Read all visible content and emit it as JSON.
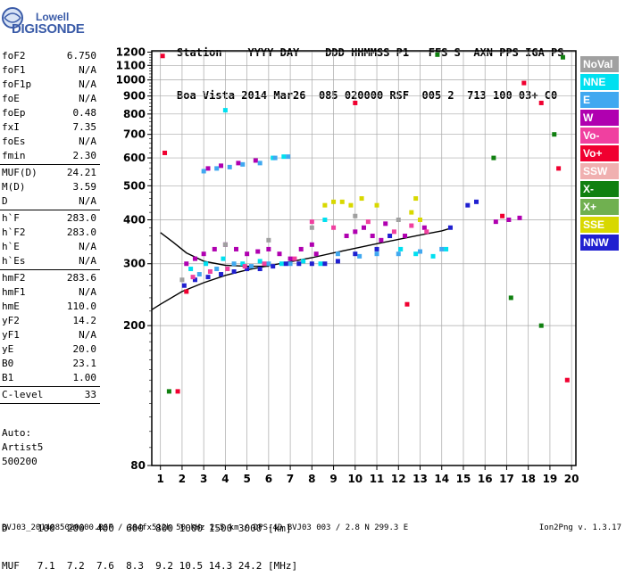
{
  "logo": {
    "line1": "Lowell",
    "line2": "DIGISONDE"
  },
  "header": {
    "line1": "Station    YYYY DAY    DDD HHMMSS P1   FFS S  AXN PPS IGA PS",
    "line2": "Boa Vista 2014 Mar26  085 020000 RSF  005 2  713 100 03+ C0"
  },
  "params": [
    {
      "label": "foF2",
      "value": "6.750"
    },
    {
      "label": "foF1",
      "value": "N/A"
    },
    {
      "label": "foF1p",
      "value": "N/A"
    },
    {
      "label": "foE",
      "value": "N/A"
    },
    {
      "label": "foEp",
      "value": "0.48"
    },
    {
      "label": "fxI",
      "value": "7.35"
    },
    {
      "label": "foEs",
      "value": "N/A"
    },
    {
      "label": "fmin",
      "value": "2.30"
    },
    {
      "sep": true
    },
    {
      "label": "MUF(D)",
      "value": "24.21"
    },
    {
      "label": "M(D)",
      "value": "3.59"
    },
    {
      "label": "D",
      "value": "N/A"
    },
    {
      "sep": true
    },
    {
      "label": "h`F",
      "value": "283.0"
    },
    {
      "label": "h`F2",
      "value": "283.0"
    },
    {
      "label": "h`E",
      "value": "N/A"
    },
    {
      "label": "h`Es",
      "value": "N/A"
    },
    {
      "sep": true
    },
    {
      "label": "hmF2",
      "value": "283.6"
    },
    {
      "label": "hmF1",
      "value": "N/A"
    },
    {
      "label": "hmE",
      "value": "110.0"
    },
    {
      "label": "yF2",
      "value": "14.2"
    },
    {
      "label": "yF1",
      "value": "N/A"
    },
    {
      "label": "yE",
      "value": "20.0"
    },
    {
      "label": "B0",
      "value": "23.1"
    },
    {
      "label": "B1",
      "value": "1.00"
    },
    {
      "sep": true
    },
    {
      "label": "C-level",
      "value": "33"
    },
    {
      "sep": true
    }
  ],
  "auto": {
    "line1": "Auto:",
    "line2": "Artist5",
    "line3": "500200"
  },
  "legend": [
    {
      "name": "NoVal",
      "color": "#a0a0a0"
    },
    {
      "name": "NNE",
      "color": "#00e0f0"
    },
    {
      "name": "E",
      "color": "#40a8f0"
    },
    {
      "name": "W",
      "color": "#b000b0"
    },
    {
      "name": "Vo-",
      "color": "#f040a0"
    },
    {
      "name": "Vo+",
      "color": "#f00030"
    },
    {
      "name": "SSW",
      "color": "#f0b0b0"
    },
    {
      "name": "X-",
      "color": "#108010"
    },
    {
      "name": "X+",
      "color": "#70b050"
    },
    {
      "name": "SSE",
      "color": "#d8d800"
    },
    {
      "name": "NNW",
      "color": "#2020d0"
    }
  ],
  "muf_table": {
    "d_line": "D     100  200  400  600  800 1000 1500 3000 [km]",
    "muf_line": "MUF   7.1  7.2  7.6  8.3  9.2 10.5 14.3 24.2 [MHz]"
  },
  "footer": {
    "left": "BVJ03_2014085020000.RSF / 384fx512h 50 kHz 2.5 km / DPS-4D BVJ03 003 / 2.8 N 299.3 E",
    "right": "Ion2Png v. 1.3.17"
  },
  "chart_data": {
    "type": "scatter",
    "xlabel": "",
    "ylabel": "",
    "xlim": [
      0.6,
      20.2
    ],
    "ylim": [
      80,
      1210
    ],
    "x_ticks": [
      1,
      2,
      3,
      4,
      5,
      6,
      7,
      8,
      9,
      10,
      11,
      12,
      13,
      14,
      15,
      16,
      17,
      18,
      19,
      20
    ],
    "y_ticks": [
      80,
      200,
      300,
      400,
      500,
      600,
      700,
      800,
      900,
      1000,
      1100,
      1200
    ],
    "y_scale": "log",
    "grid": true,
    "legend_position": "right",
    "series": [
      {
        "name": "W",
        "points": [
          [
            2.2,
            300
          ],
          [
            2.6,
            310
          ],
          [
            3.0,
            320
          ],
          [
            3.5,
            330
          ],
          [
            4.0,
            340
          ],
          [
            4.5,
            330
          ],
          [
            5.0,
            320
          ],
          [
            5.5,
            325
          ],
          [
            6.0,
            330
          ],
          [
            6.5,
            320
          ],
          [
            7.0,
            310
          ],
          [
            7.5,
            330
          ],
          [
            8.0,
            340
          ],
          [
            8.2,
            320
          ],
          [
            9.6,
            360
          ],
          [
            10.0,
            370
          ],
          [
            10.4,
            380
          ],
          [
            10.8,
            360
          ],
          [
            11.2,
            350
          ],
          [
            11.4,
            390
          ],
          [
            3.2,
            560
          ],
          [
            3.8,
            570
          ],
          [
            4.6,
            580
          ],
          [
            5.4,
            590
          ],
          [
            13.2,
            380
          ],
          [
            12.3,
            360
          ],
          [
            16.5,
            395
          ],
          [
            17.1,
            400
          ],
          [
            17.6,
            405
          ]
        ]
      },
      {
        "name": "NNE",
        "points": [
          [
            2.4,
            290
          ],
          [
            3.1,
            300
          ],
          [
            3.9,
            310
          ],
          [
            4.8,
            300
          ],
          [
            5.6,
            305
          ],
          [
            6.6,
            300
          ],
          [
            7.6,
            305
          ],
          [
            8.4,
            300
          ],
          [
            6.2,
            600
          ],
          [
            6.7,
            605
          ],
          [
            4.0,
            820
          ],
          [
            12.1,
            330
          ],
          [
            12.8,
            320
          ],
          [
            13.6,
            315
          ],
          [
            14.2,
            330
          ],
          [
            8.6,
            400
          ]
        ]
      },
      {
        "name": "E",
        "points": [
          [
            2.8,
            280
          ],
          [
            3.6,
            290
          ],
          [
            4.4,
            300
          ],
          [
            5.2,
            295
          ],
          [
            6.0,
            300
          ],
          [
            7.0,
            300
          ],
          [
            9.2,
            320
          ],
          [
            10.2,
            315
          ],
          [
            11.0,
            320
          ],
          [
            12.0,
            320
          ],
          [
            13.0,
            325
          ],
          [
            14.0,
            330
          ],
          [
            3.0,
            550
          ],
          [
            3.6,
            560
          ],
          [
            4.2,
            565
          ],
          [
            4.8,
            575
          ],
          [
            5.6,
            580
          ],
          [
            6.3,
            600
          ],
          [
            6.9,
            605
          ]
        ]
      },
      {
        "name": "NNW",
        "points": [
          [
            2.1,
            260
          ],
          [
            2.6,
            270
          ],
          [
            3.2,
            275
          ],
          [
            3.8,
            280
          ],
          [
            4.4,
            285
          ],
          [
            5.0,
            290
          ],
          [
            5.6,
            290
          ],
          [
            6.2,
            295
          ],
          [
            6.8,
            300
          ],
          [
            7.4,
            300
          ],
          [
            8.0,
            300
          ],
          [
            8.6,
            300
          ],
          [
            9.2,
            305
          ],
          [
            10.0,
            320
          ],
          [
            11.0,
            330
          ],
          [
            11.6,
            360
          ],
          [
            14.4,
            380
          ],
          [
            15.2,
            440
          ],
          [
            15.6,
            450
          ]
        ]
      },
      {
        "name": "Vo-",
        "points": [
          [
            2.5,
            275
          ],
          [
            3.3,
            285
          ],
          [
            4.1,
            290
          ],
          [
            4.9,
            295
          ],
          [
            5.8,
            300
          ],
          [
            7.2,
            310
          ],
          [
            8.0,
            395
          ],
          [
            9.0,
            380
          ],
          [
            10.6,
            395
          ],
          [
            11.8,
            370
          ],
          [
            12.6,
            385
          ],
          [
            13.3,
            370
          ]
        ]
      },
      {
        "name": "SSE",
        "points": [
          [
            8.6,
            440
          ],
          [
            9.0,
            450
          ],
          [
            9.4,
            450
          ],
          [
            9.8,
            440
          ],
          [
            10.3,
            460
          ],
          [
            11.0,
            440
          ],
          [
            12.6,
            420
          ],
          [
            13.0,
            400
          ],
          [
            12.8,
            460
          ]
        ]
      },
      {
        "name": "X-",
        "points": [
          [
            1.4,
            130
          ],
          [
            13.8,
            1180
          ],
          [
            16.4,
            600
          ],
          [
            17.2,
            240
          ],
          [
            18.6,
            200
          ],
          [
            19.2,
            700
          ],
          [
            19.6,
            1160
          ]
        ]
      },
      {
        "name": "Vo+",
        "points": [
          [
            1.1,
            1170
          ],
          [
            1.2,
            620
          ],
          [
            1.8,
            130
          ],
          [
            2.2,
            250
          ],
          [
            10.0,
            860
          ],
          [
            12.4,
            230
          ],
          [
            16.8,
            410
          ],
          [
            17.8,
            980
          ],
          [
            18.6,
            860
          ],
          [
            19.4,
            560
          ],
          [
            19.8,
            140
          ]
        ]
      },
      {
        "name": "NoVal",
        "points": [
          [
            2.0,
            270
          ],
          [
            4.0,
            340
          ],
          [
            6.0,
            350
          ],
          [
            8.0,
            380
          ],
          [
            10.0,
            410
          ],
          [
            12.0,
            400
          ]
        ]
      }
    ],
    "fit_curves": [
      {
        "name": "virtual height trace",
        "points": [
          [
            0.6,
            222
          ],
          [
            1.0,
            230
          ],
          [
            2.0,
            250
          ],
          [
            3.0,
            265
          ],
          [
            4.0,
            278
          ],
          [
            5.0,
            288
          ],
          [
            6.0,
            296
          ],
          [
            7.0,
            304
          ],
          [
            8.0,
            312
          ],
          [
            9.0,
            322
          ],
          [
            10.0,
            332
          ],
          [
            11.0,
            342
          ],
          [
            12.0,
            352
          ],
          [
            13.0,
            362
          ],
          [
            14.0,
            372
          ],
          [
            14.5,
            380
          ]
        ]
      },
      {
        "name": "upper trace",
        "points": [
          [
            1.0,
            368
          ],
          [
            1.6,
            345
          ],
          [
            2.2,
            322
          ],
          [
            3.0,
            305
          ],
          [
            4.0,
            297
          ],
          [
            5.0,
            295
          ],
          [
            6.0,
            295
          ]
        ]
      }
    ]
  }
}
